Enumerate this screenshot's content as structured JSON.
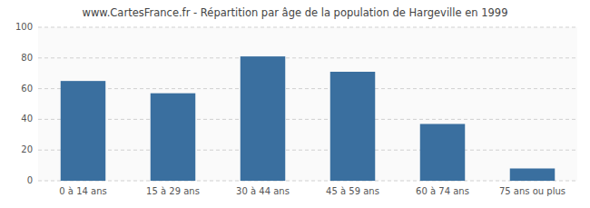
{
  "chart_data": {
    "type": "bar",
    "title": "www.CartesFrance.fr - Répartition par âge de la population de Hargeville en 1999",
    "categories": [
      "0 à 14 ans",
      "15 à 29 ans",
      "30 à 44 ans",
      "45 à 59 ans",
      "60 à 74 ans",
      "75 ans ou plus"
    ],
    "values": [
      65,
      57,
      81,
      71,
      37,
      8
    ],
    "color": "#3a6f9f",
    "ylim": [
      0,
      100
    ],
    "yticks": [
      0,
      20,
      40,
      60,
      80,
      100
    ],
    "grid": true
  }
}
